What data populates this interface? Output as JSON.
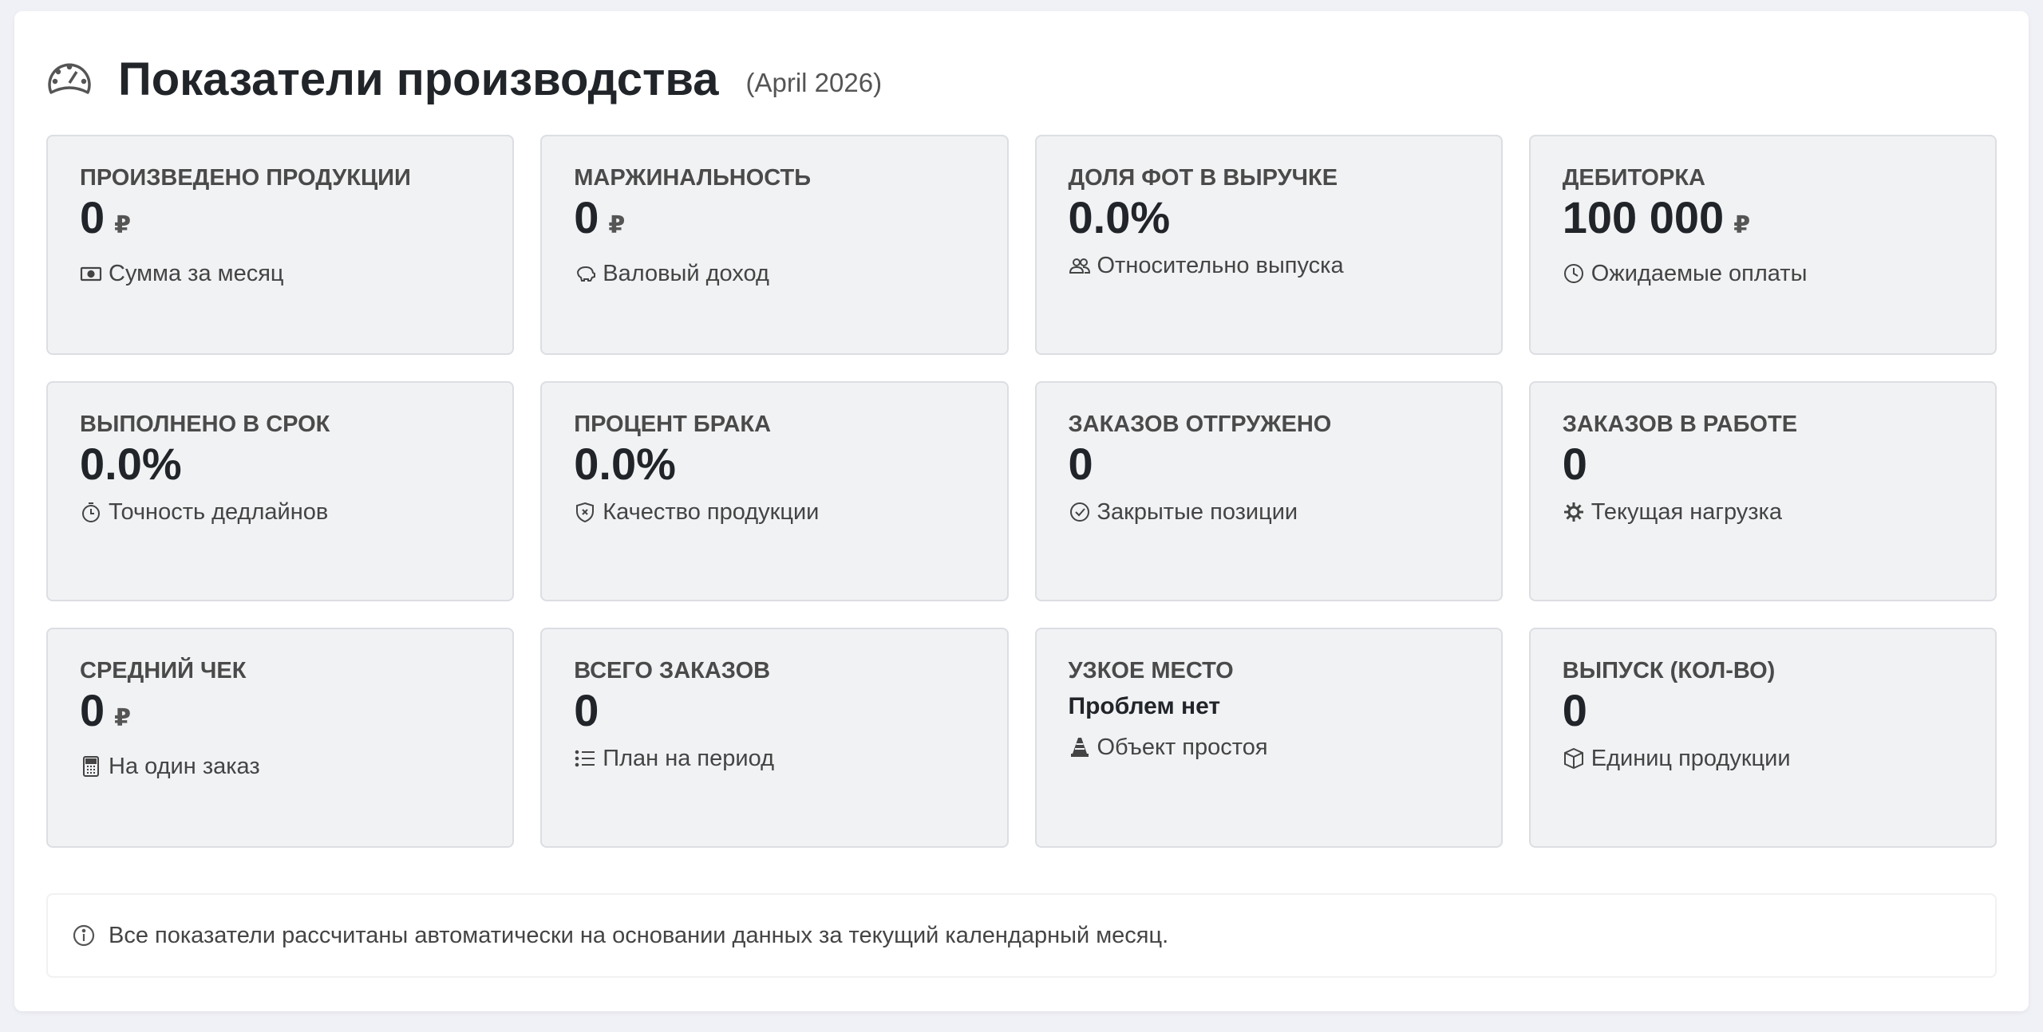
{
  "header": {
    "title": "Показатели производства",
    "subtitle": "(April 2026)",
    "icon": "speedometer-icon"
  },
  "currency": "₽",
  "cards": [
    {
      "label": "Произведено продукции",
      "value": "0",
      "currency": true,
      "sub": "Сумма за месяц",
      "icon": "cash-icon"
    },
    {
      "label": "Маржинальность",
      "value": "0",
      "currency": true,
      "sub": "Валовый доход",
      "icon": "piggy-bank-icon"
    },
    {
      "label": "Доля ФОТ в выручке",
      "value": "0.0%",
      "currency": false,
      "sub": "Относительно выпуска",
      "icon": "people-icon"
    },
    {
      "label": "Дебиторка",
      "value": "100 000",
      "currency": true,
      "sub": "Ожидаемые оплаты",
      "icon": "clock-icon"
    },
    {
      "label": "Выполнено в срок",
      "value": "0.0%",
      "currency": false,
      "sub": "Точность дедлайнов",
      "icon": "stopwatch-icon"
    },
    {
      "label": "Процент брака",
      "value": "0.0%",
      "currency": false,
      "sub": "Качество продукции",
      "icon": "shield-x-icon"
    },
    {
      "label": "Заказов отгружено",
      "value": "0",
      "currency": false,
      "sub": "Закрытые позиции",
      "icon": "check-circle-icon"
    },
    {
      "label": "Заказов в работе",
      "value": "0",
      "currency": false,
      "sub": "Текущая нагрузка",
      "icon": "gear-icon"
    },
    {
      "label": "Средний чек",
      "value": "0",
      "currency": true,
      "sub": "На один заказ",
      "icon": "calculator-icon"
    },
    {
      "label": "Всего заказов",
      "value": "0",
      "currency": false,
      "sub": "План на период",
      "icon": "list-icon"
    },
    {
      "label": "Узкое место",
      "value": "Проблем нет",
      "currency": false,
      "small": true,
      "sub": "Объект простоя",
      "icon": "cone-icon"
    },
    {
      "label": "Выпуск (кол-во)",
      "value": "0",
      "currency": false,
      "sub": "Единиц продукции",
      "icon": "box-icon"
    }
  ],
  "info": {
    "text": "Все показатели рассчитаны автоматически на основании данных за текущий календарный месяц.",
    "icon": "info-circle-icon"
  }
}
